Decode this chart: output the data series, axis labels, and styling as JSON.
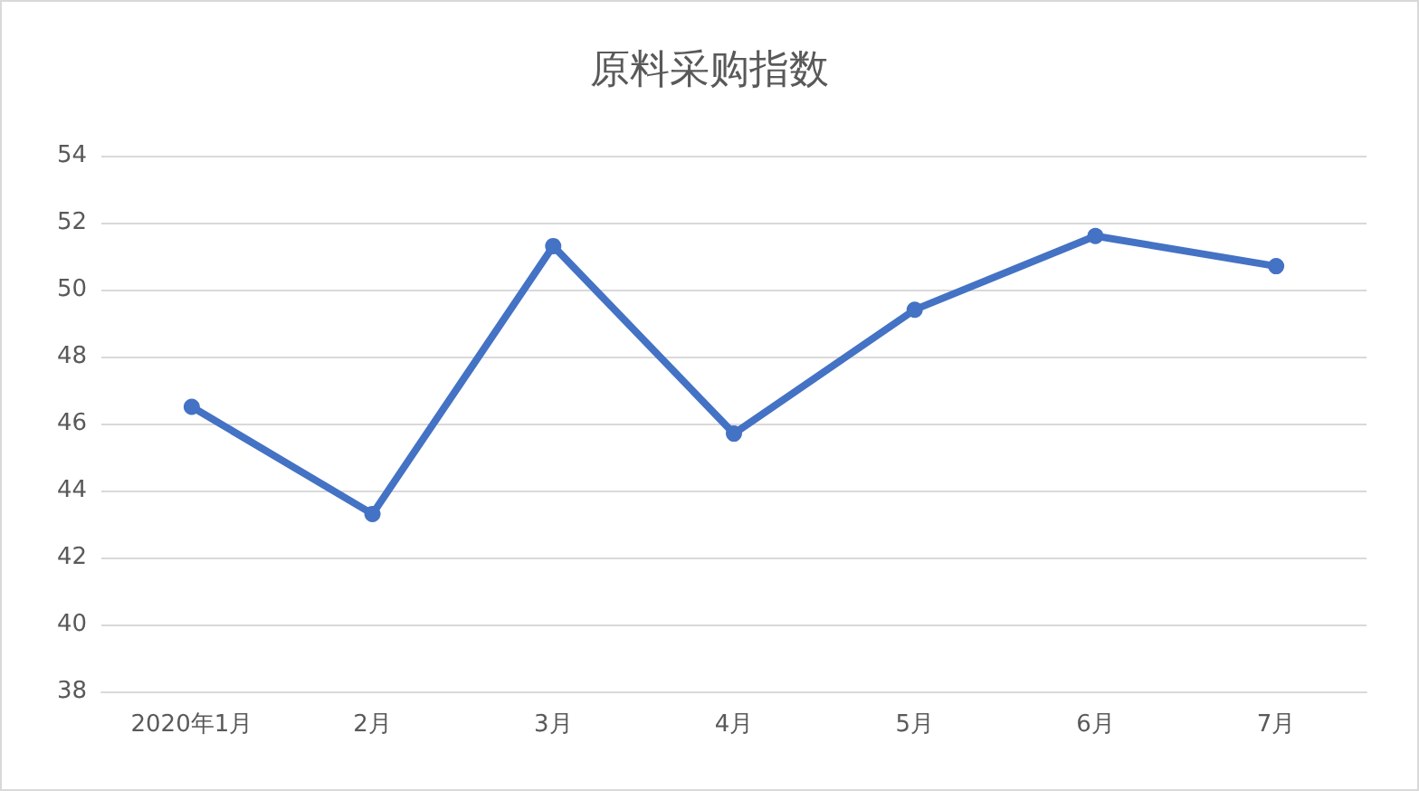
{
  "chart_data": {
    "type": "line",
    "title": "原料采购指数",
    "categories": [
      "2020年1月",
      "2月",
      "3月",
      "4月",
      "5月",
      "6月",
      "7月"
    ],
    "values": [
      46.5,
      43.3,
      51.3,
      45.7,
      49.4,
      51.6,
      50.7
    ],
    "color": "#4472c4",
    "ylim": [
      38,
      54
    ],
    "yticks": [
      38,
      40,
      42,
      44,
      46,
      48,
      50,
      52,
      54
    ],
    "grid": "y",
    "marker": "circle",
    "line_style": "solid"
  }
}
